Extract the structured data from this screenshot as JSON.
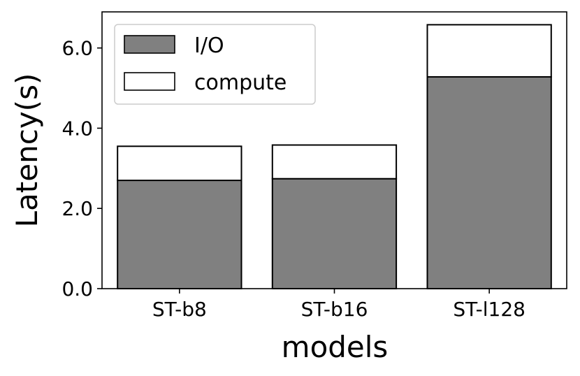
{
  "chart_data": {
    "type": "bar",
    "stacked": true,
    "categories": [
      "ST-b8",
      "ST-b16",
      "ST-l128"
    ],
    "series": [
      {
        "name": "I/O",
        "values": [
          2.7,
          2.74,
          5.28
        ],
        "color": "#808080"
      },
      {
        "name": "compute",
        "values": [
          0.85,
          0.84,
          1.3
        ],
        "color": "#ffffff"
      }
    ],
    "xlabel": "models",
    "ylabel": "Latency(s)",
    "ylim": [
      0,
      6.9
    ],
    "yticks": [
      0.0,
      2.0,
      4.0,
      6.0
    ],
    "ytick_labels": [
      "0.0",
      "2.0",
      "4.0",
      "6.0"
    ],
    "grid": false,
    "legend_position": "top-left",
    "edge_color": "#000000"
  }
}
